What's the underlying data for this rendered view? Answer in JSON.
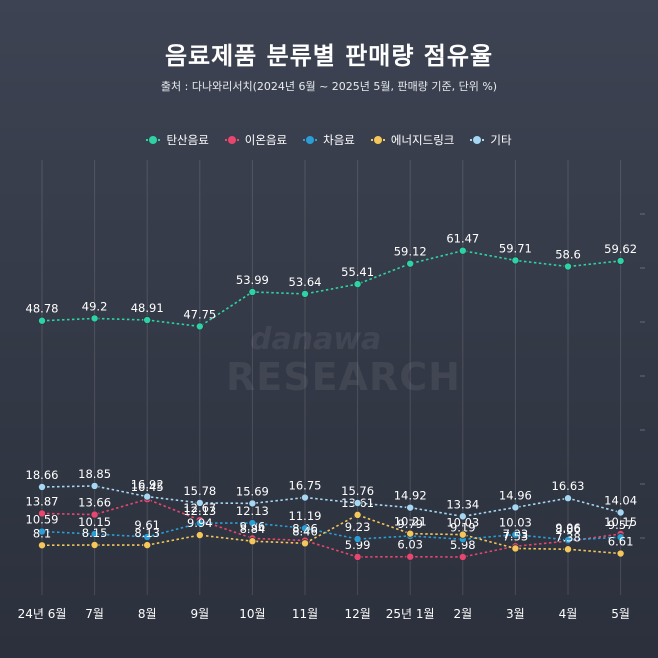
{
  "chart_data": {
    "type": "line",
    "title": "음료제품 분류별 판매량 점유율",
    "subtitle": "출처 : 다나와리서치(2024년 6월 ~ 2025년 5월, 판매량 기준, 단위 %)",
    "watermark": [
      "danawa",
      "RESEARCH"
    ],
    "categories": [
      "24년 6월",
      "7월",
      "8월",
      "9월",
      "10월",
      "11월",
      "12월",
      "25년 1월",
      "2월",
      "3월",
      "4월",
      "5월"
    ],
    "series": [
      {
        "name": "탄산음료",
        "color": "#2ed3a4",
        "values": [
          48.78,
          49.2,
          48.91,
          47.75,
          53.99,
          53.64,
          55.41,
          59.12,
          61.47,
          59.71,
          58.6,
          59.62
        ]
      },
      {
        "name": "이온음료",
        "color": "#e8466e",
        "values": [
          13.87,
          13.66,
          16.45,
          12.67,
          9.36,
          8.96,
          5.99,
          6.03,
          5.98,
          7.93,
          8.86,
          10.15
        ]
      },
      {
        "name": "차음료",
        "color": "#2b9ed6",
        "values": [
          10.59,
          10.15,
          9.61,
          12.13,
          12.13,
          11.19,
          9.23,
          9.79,
          9.19,
          10.03,
          9.06,
          9.57
        ]
      },
      {
        "name": "에너지드링크",
        "color": "#f5c75a",
        "values": [
          8.1,
          8.15,
          8.13,
          9.94,
          8.84,
          8.46,
          13.61,
          10.21,
          10.03,
          7.53,
          7.38,
          6.61
        ]
      },
      {
        "name": "기타",
        "color": "#a6d7f2",
        "values": [
          18.66,
          18.85,
          16.92,
          15.78,
          15.69,
          16.75,
          15.76,
          14.92,
          13.34,
          14.96,
          16.63,
          14.04
        ]
      }
    ],
    "ylim": [
      0,
      75
    ],
    "xlabel": "",
    "ylabel": "",
    "grid": true,
    "legend": "top"
  }
}
